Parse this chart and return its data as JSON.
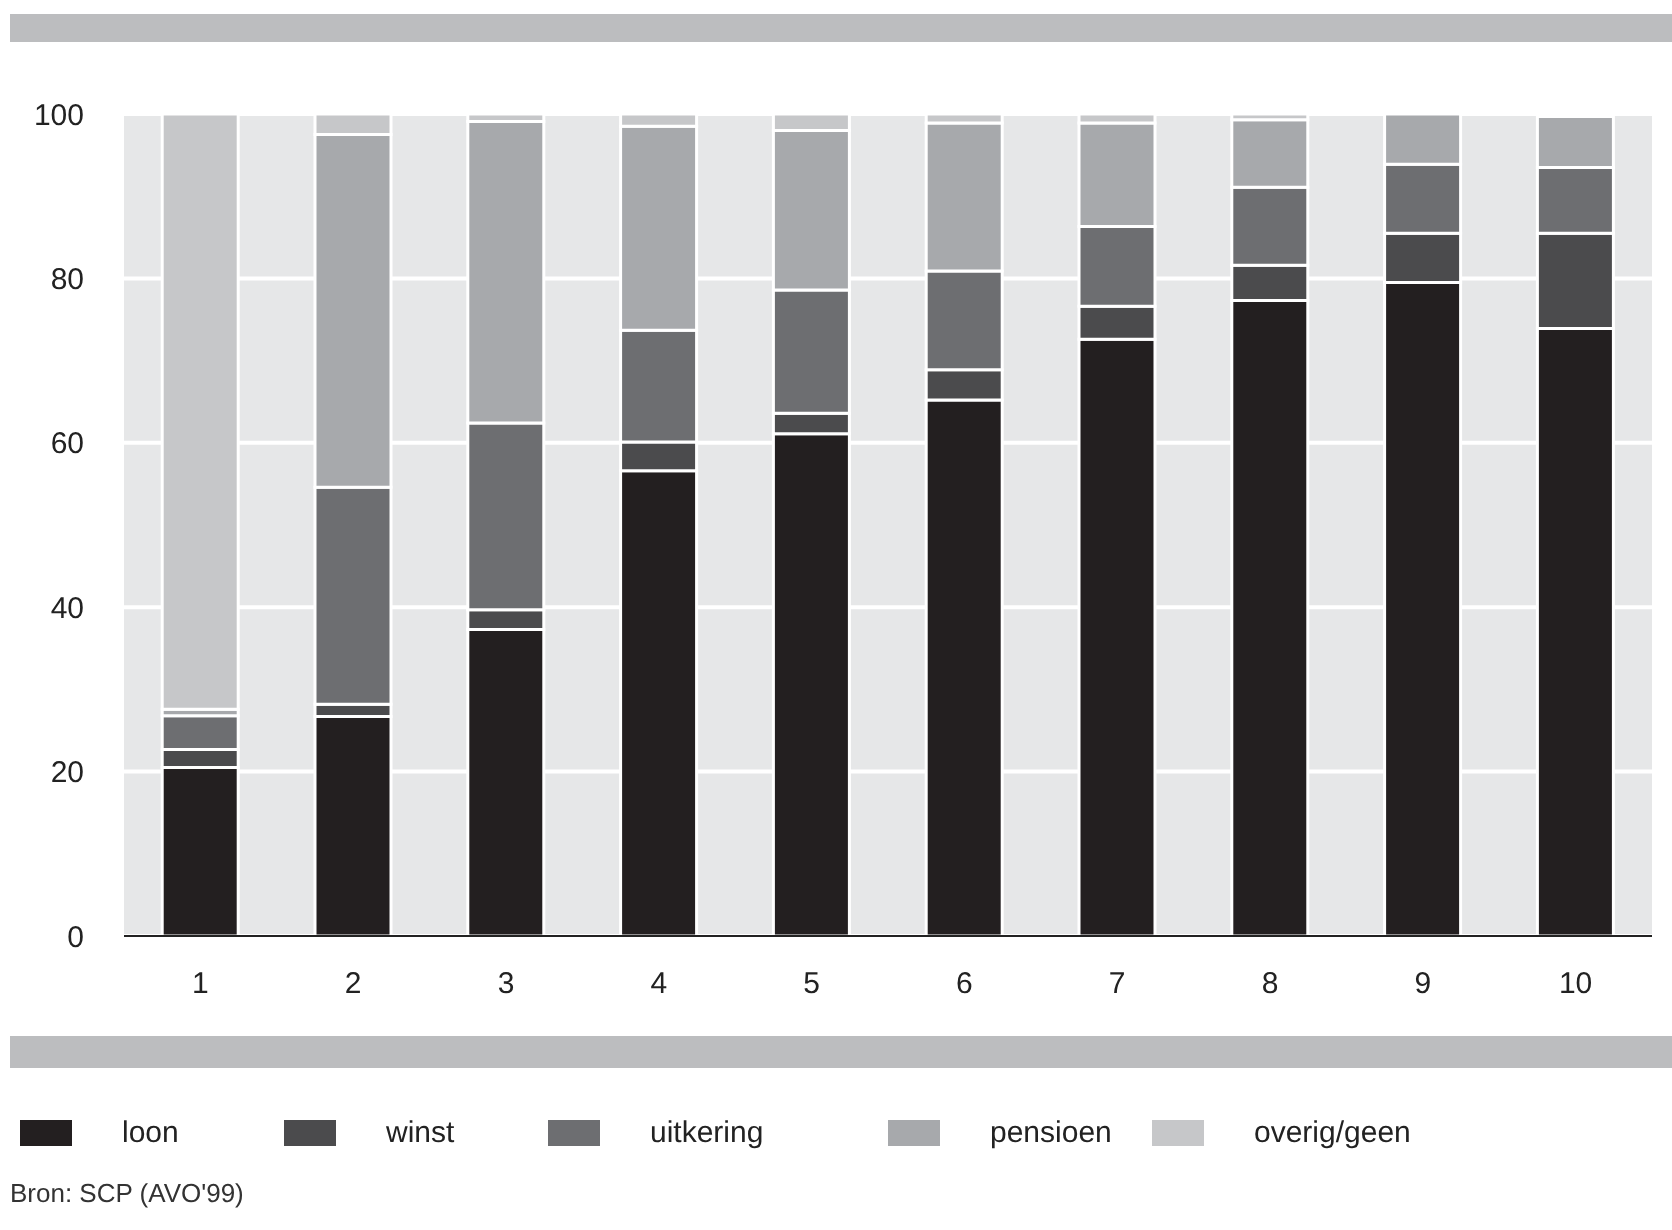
{
  "chart_data": {
    "type": "bar",
    "stacked": true,
    "categories": [
      "1",
      "2",
      "3",
      "4",
      "5",
      "6",
      "7",
      "8",
      "9",
      "10"
    ],
    "series": [
      {
        "name": "loon",
        "color": "#231f20",
        "values": [
          20.5,
          26.7,
          37.3,
          56.6,
          61.1,
          65.2,
          72.6,
          77.3,
          79.5,
          73.9
        ]
      },
      {
        "name": "winst",
        "color": "#4b4b4d",
        "values": [
          2.2,
          1.5,
          2.4,
          3.5,
          2.5,
          3.7,
          4.0,
          4.3,
          6.0,
          11.6
        ]
      },
      {
        "name": "uitkering",
        "color": "#6d6e71",
        "values": [
          4.1,
          26.4,
          22.7,
          13.6,
          15.0,
          12.0,
          9.7,
          9.5,
          8.4,
          8.0
        ]
      },
      {
        "name": "pensioen",
        "color": "#a7a9ac",
        "values": [
          0.8,
          42.9,
          36.7,
          24.8,
          19.4,
          18.0,
          12.6,
          8.2,
          6.1,
          6.2
        ]
      },
      {
        "name": "overig/geen",
        "color": "#c6c7c9",
        "values": [
          72.4,
          2.5,
          0.9,
          1.5,
          2.0,
          1.1,
          1.1,
          0.7,
          null,
          null
        ]
      }
    ],
    "ylim": [
      0,
      100
    ],
    "yticks": [
      0,
      20,
      40,
      60,
      80,
      100
    ],
    "grid": "y",
    "legend": "bottom",
    "annotations": [
      "Bron: SCP (AVO'99)"
    ]
  }
}
